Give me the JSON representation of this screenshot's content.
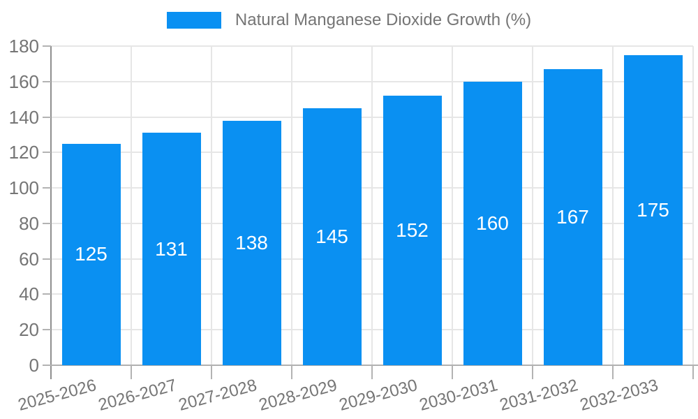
{
  "chart_data": {
    "type": "bar",
    "title": "Natural Manganese Dioxide Growth (%)",
    "legend_position": "top",
    "categories": [
      "2025-2026",
      "2026-2027",
      "2027-2028",
      "2028-2029",
      "2029-2030",
      "2030-2031",
      "2031-2032",
      "2032-2033"
    ],
    "series": [
      {
        "name": "Natural Manganese Dioxide Growth (%)",
        "values": [
          125,
          131,
          138,
          145,
          152,
          160,
          167,
          175
        ]
      }
    ],
    "value_labels_shown": true,
    "xlabel": "",
    "ylabel": "",
    "ylim": [
      0,
      180
    ],
    "yticks": [
      0,
      20,
      40,
      60,
      80,
      100,
      120,
      140,
      160,
      180
    ],
    "grid": true,
    "x_label_rotation_deg": -15,
    "colors": {
      "bar": "#0A90F2",
      "grid": "#E6E6E6",
      "x_axis": "#B0B0B0",
      "y_axis": "#8F8F8F",
      "tick": "#B3B3B3",
      "axis_text": "#757575",
      "value_label_text": "#FFFFFF",
      "background": "#FFFFFF"
    }
  }
}
